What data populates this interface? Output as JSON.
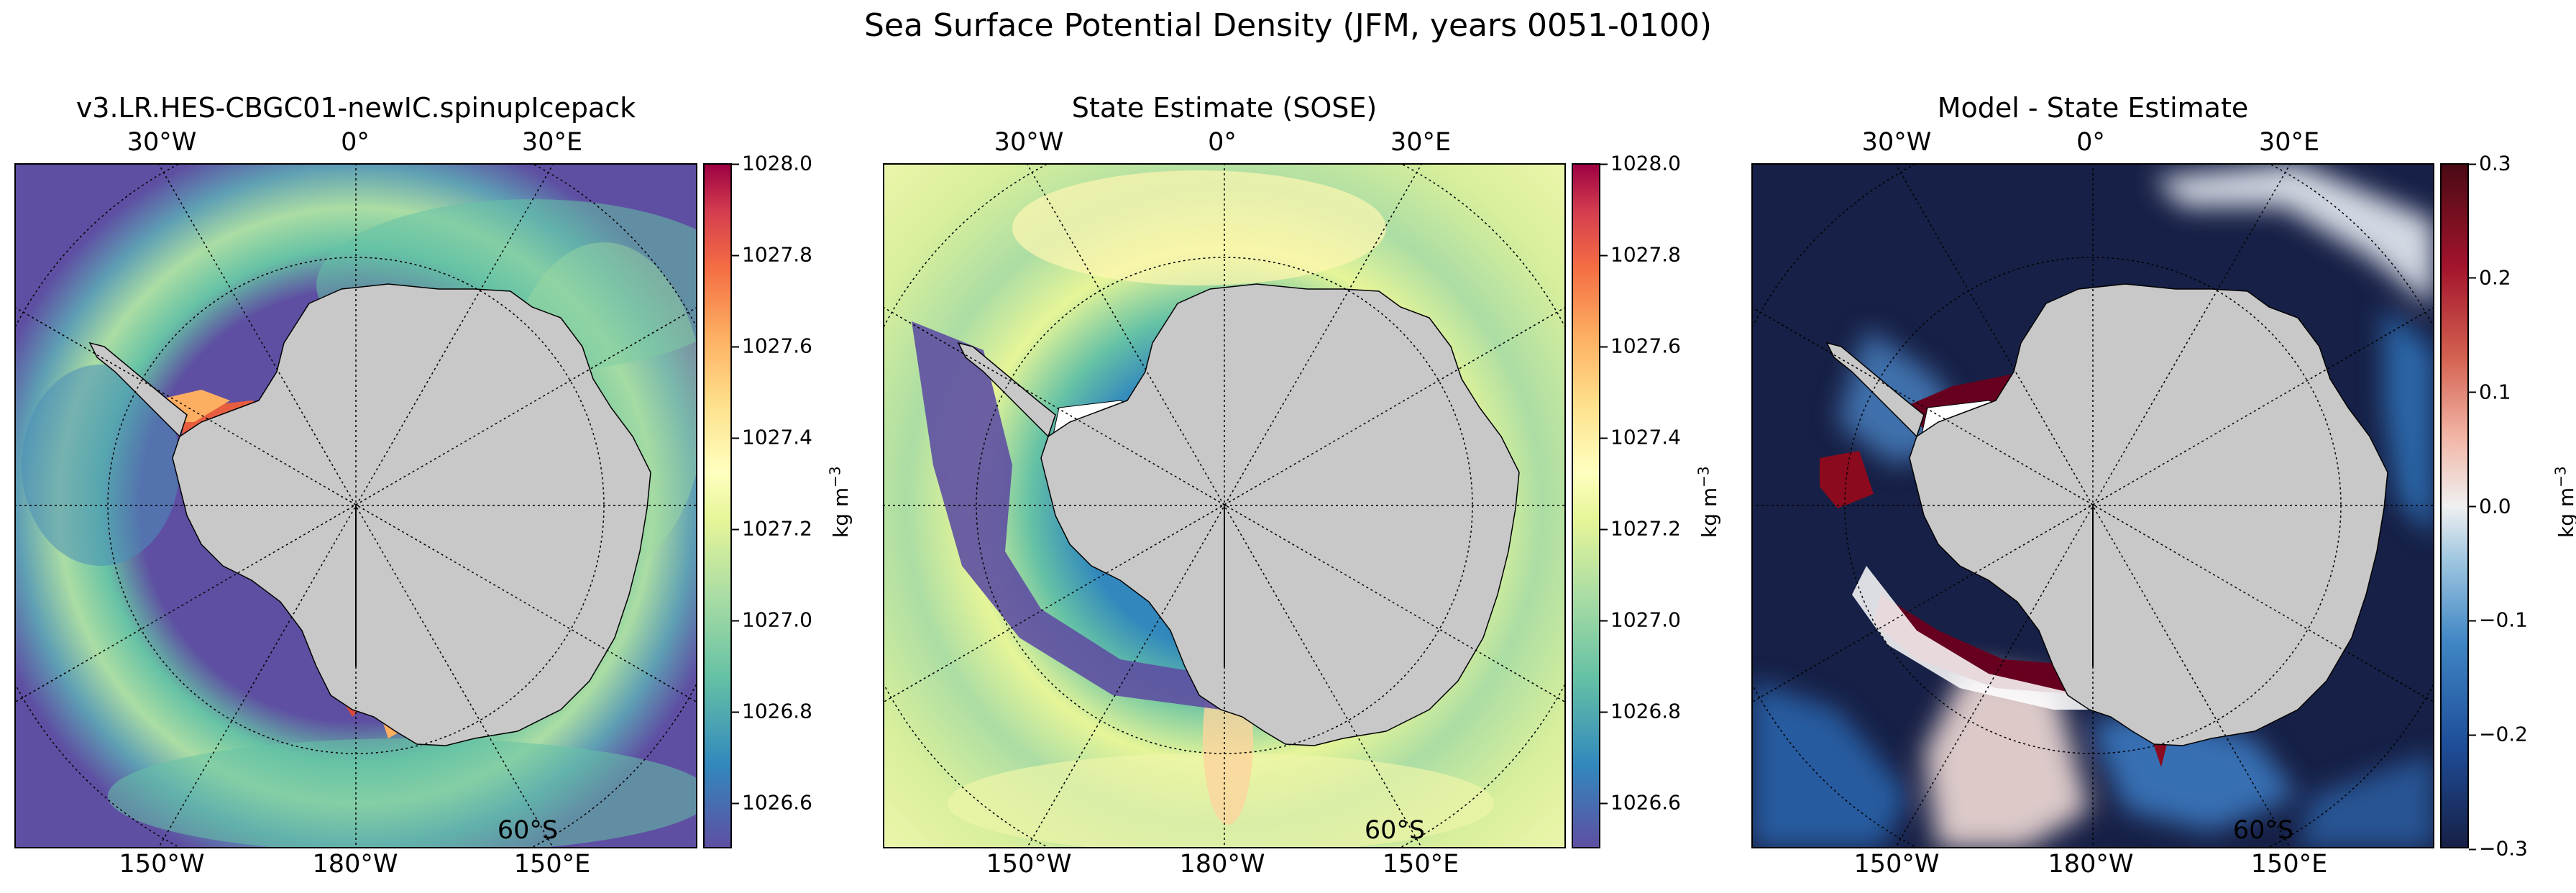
{
  "figure": {
    "suptitle": "Sea Surface Potential Density (JFM, years 0051-0100)"
  },
  "chart_data": [
    {
      "type": "heatmap",
      "title": "v3.LR.HES-CBGC01-newIC.spinupIcepack",
      "projection": "South Polar Stereographic",
      "lon_labels_top": [
        "30°W",
        "0°",
        "30°E"
      ],
      "lon_labels_bottom": [
        "150°W",
        "180°W",
        "150°E"
      ],
      "lat_label": "60°S",
      "colormap": "Spectral_r",
      "colorbar": {
        "ticks": [
          1026.6,
          1026.8,
          1027.0,
          1027.2,
          1027.4,
          1027.6,
          1027.8,
          1028.0
        ],
        "tick_labels": [
          "1026.6",
          "1026.8",
          "1027.0",
          "1027.2",
          "1027.4",
          "1027.6",
          "1027.8",
          "1028.0"
        ],
        "range": [
          1026.5,
          1028.0
        ],
        "units": "kg m",
        "units_exp": "−3"
      }
    },
    {
      "type": "heatmap",
      "title": "State Estimate (SOSE)",
      "projection": "South Polar Stereographic",
      "lon_labels_top": [
        "30°W",
        "0°",
        "30°E"
      ],
      "lon_labels_bottom": [
        "150°W",
        "180°W",
        "150°E"
      ],
      "lat_label": "60°S",
      "colormap": "Spectral_r",
      "colorbar": {
        "ticks": [
          1026.6,
          1026.8,
          1027.0,
          1027.2,
          1027.4,
          1027.6,
          1027.8,
          1028.0
        ],
        "tick_labels": [
          "1026.6",
          "1026.8",
          "1027.0",
          "1027.2",
          "1027.4",
          "1027.6",
          "1027.8",
          "1028.0"
        ],
        "range": [
          1026.5,
          1028.0
        ],
        "units": "kg m",
        "units_exp": "−3"
      }
    },
    {
      "type": "heatmap",
      "title": "Model - State Estimate",
      "projection": "South Polar Stereographic",
      "lon_labels_top": [
        "30°W",
        "0°",
        "30°E"
      ],
      "lon_labels_bottom": [
        "150°W",
        "180°W",
        "150°E"
      ],
      "lat_label": "60°S",
      "colormap": "RdBu_r (diverging)",
      "colorbar": {
        "ticks": [
          -0.3,
          -0.2,
          -0.1,
          0.0,
          0.1,
          0.2,
          0.3
        ],
        "tick_labels": [
          "−0.3",
          "−0.2",
          "−0.1",
          "0.0",
          "0.1",
          "0.2",
          "0.3"
        ],
        "range": [
          -0.3,
          0.3
        ],
        "units": "kg m",
        "units_exp": "−3"
      }
    }
  ],
  "colors": {
    "land": "#c8c8c8",
    "spectral_low": "#5e4fa2",
    "spectral_mid": "#ffffbf",
    "spectral_high": "#9e0142",
    "diff_low": "#172046",
    "diff_mid": "#f0f0f0",
    "diff_high": "#4a0a14"
  }
}
